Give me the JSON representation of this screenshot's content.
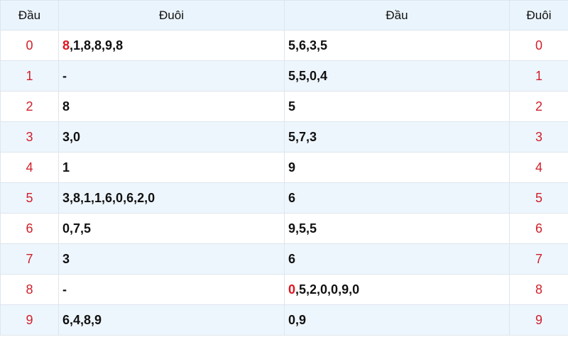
{
  "header": [
    "Đầu",
    "Đuôi",
    "Đầu",
    "Đuôi"
  ],
  "colors": {
    "accent_red": "#d0202a",
    "alt_row": "#eef6fd",
    "header_bg": "#eaf4fc"
  },
  "rows": [
    {
      "left": "0",
      "duoi": {
        "hl": "8",
        "text": ",1,8,8,9,8"
      },
      "dau": {
        "hl": "",
        "text": "5,6,3,5"
      },
      "right": "0"
    },
    {
      "left": "1",
      "duoi": {
        "hl": "",
        "text": "-"
      },
      "dau": {
        "hl": "",
        "text": "5,5,0,4"
      },
      "right": "1"
    },
    {
      "left": "2",
      "duoi": {
        "hl": "",
        "text": "8"
      },
      "dau": {
        "hl": "",
        "text": "5"
      },
      "right": "2"
    },
    {
      "left": "3",
      "duoi": {
        "hl": "",
        "text": "3,0"
      },
      "dau": {
        "hl": "",
        "text": "5,7,3"
      },
      "right": "3"
    },
    {
      "left": "4",
      "duoi": {
        "hl": "",
        "text": "1"
      },
      "dau": {
        "hl": "",
        "text": "9"
      },
      "right": "4"
    },
    {
      "left": "5",
      "duoi": {
        "hl": "",
        "text": "3,8,1,1,6,0,6,2,0"
      },
      "dau": {
        "hl": "",
        "text": "6"
      },
      "right": "5"
    },
    {
      "left": "6",
      "duoi": {
        "hl": "",
        "text": "0,7,5"
      },
      "dau": {
        "hl": "",
        "text": "9,5,5"
      },
      "right": "6"
    },
    {
      "left": "7",
      "duoi": {
        "hl": "",
        "text": "3"
      },
      "dau": {
        "hl": "",
        "text": "6"
      },
      "right": "7"
    },
    {
      "left": "8",
      "duoi": {
        "hl": "",
        "text": "-"
      },
      "dau": {
        "hl": "0",
        "text": ",5,2,0,0,9,0"
      },
      "right": "8"
    },
    {
      "left": "9",
      "duoi": {
        "hl": "",
        "text": "6,4,8,9"
      },
      "dau": {
        "hl": "",
        "text": "0,9"
      },
      "right": "9"
    }
  ]
}
